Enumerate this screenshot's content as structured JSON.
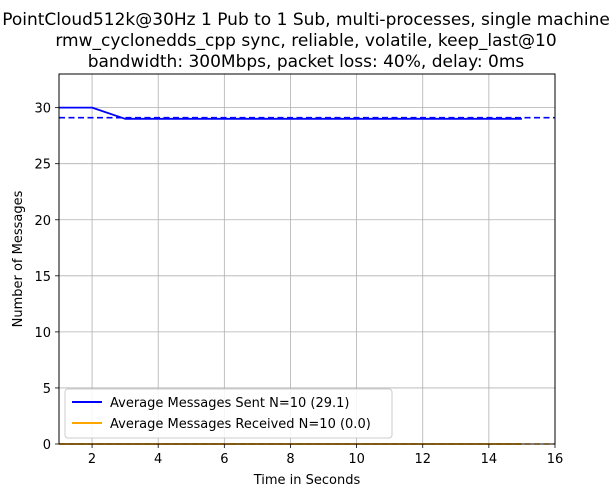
{
  "chart_data": {
    "type": "line",
    "title": [
      "PointCloud512k@30Hz 1 Pub to 1 Sub, multi-processes, single machine",
      "rmw_cyclonedds_cpp sync, reliable, volatile, keep_last@10",
      "bandwidth: 300Mbps, packet loss: 40%, delay: 0ms"
    ],
    "xlabel": "Time in Seconds",
    "ylabel": "Number of Messages",
    "xlim": [
      1,
      16
    ],
    "ylim": [
      0,
      33
    ],
    "xticks": [
      2,
      4,
      6,
      8,
      10,
      12,
      14,
      16
    ],
    "yticks": [
      0,
      5,
      10,
      15,
      20,
      25,
      30
    ],
    "grid": true,
    "legend_position": "lower-left",
    "series": [
      {
        "name": "Average Messages Sent N=10 (29.1)",
        "color": "#0000ff",
        "style": "solid",
        "x": [
          1,
          2,
          3,
          4,
          5,
          6,
          7,
          8,
          9,
          10,
          11,
          12,
          13,
          14,
          15
        ],
        "y": [
          30,
          30,
          29,
          29,
          29,
          29,
          29,
          29,
          29,
          29,
          29,
          29,
          29,
          29,
          29
        ]
      },
      {
        "name": "Average Messages Received N=10 (0.0)",
        "color": "#ffa500",
        "style": "solid",
        "x": [
          1,
          2,
          3,
          4,
          5,
          6,
          7,
          8,
          9,
          10,
          11,
          12,
          13,
          14,
          15
        ],
        "y": [
          0,
          0,
          0,
          0,
          0,
          0,
          0,
          0,
          0,
          0,
          0,
          0,
          0,
          0,
          0
        ]
      }
    ],
    "reference_lines": [
      {
        "y": 29.1,
        "color": "#0000ff",
        "style": "dashed"
      },
      {
        "y": 0.0,
        "color": "#ffa500",
        "style": "dashed"
      }
    ]
  }
}
